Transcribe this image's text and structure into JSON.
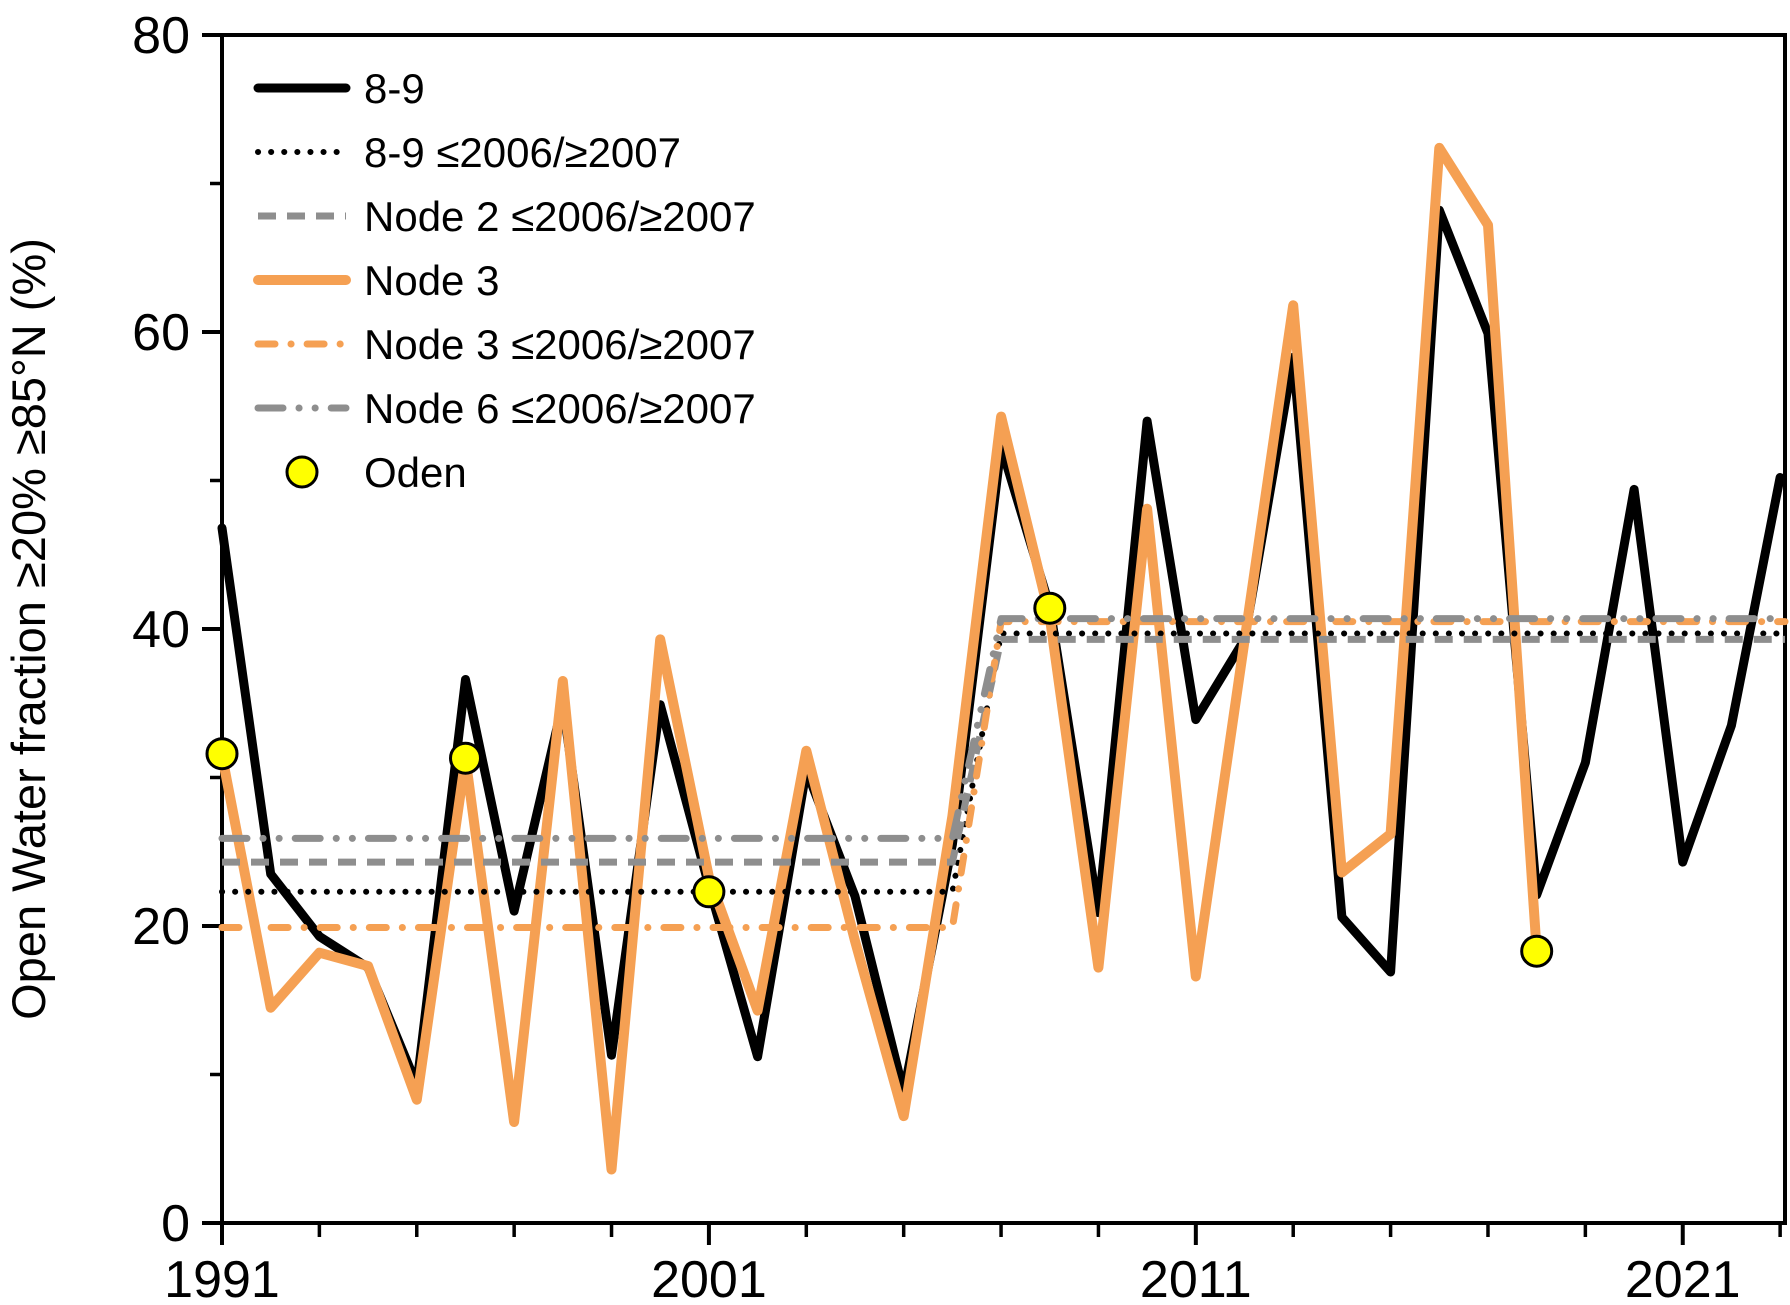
{
  "chart_data": {
    "type": "line",
    "title": "",
    "xlabel": "",
    "ylabel": "Open Water fraction ≥20%  ≥85°N  (%)",
    "xlim": [
      1991,
      2023.1
    ],
    "ylim": [
      0,
      80
    ],
    "x_ticks_labeled": [
      1991,
      2001,
      2011,
      2021
    ],
    "x_tick_minor_step": 2,
    "y_ticks_labeled": [
      0,
      20,
      40,
      60,
      80
    ],
    "y_tick_minor_step": 10,
    "grid": false,
    "legend_position": "top-left-inside",
    "colors": {
      "black": "#000000",
      "orange": "#F5A053",
      "gray": "#8E8E8E",
      "yellow": "#FFFF00"
    },
    "series": [
      {
        "name": "8-9",
        "type": "line",
        "color": "black",
        "width": 9,
        "start_year": 1991,
        "values": [
          46.8,
          23.5,
          19.3,
          17.2,
          9.3,
          36.6,
          21.0,
          35.0,
          11.3,
          34.9,
          22.7,
          11.2,
          30.5,
          22.0,
          8.8,
          25.5,
          52.3,
          41.5,
          20.9,
          54.0,
          33.9,
          39.3,
          58.3,
          20.6,
          16.9,
          68.2,
          59.9,
          22.1,
          31.0,
          49.4,
          24.3,
          33.5,
          50.2
        ]
      },
      {
        "name": "Node 3",
        "type": "line",
        "color": "orange",
        "width": 10,
        "start_year": 1991,
        "values": [
          31.5,
          14.5,
          18.2,
          17.3,
          8.3,
          31.3,
          6.8,
          36.5,
          3.6,
          39.3,
          23.3,
          14.3,
          31.8,
          19.0,
          7.2,
          27.4,
          54.3,
          40.8,
          17.2,
          48.1,
          16.6,
          39.2,
          61.8,
          23.6,
          26.2,
          72.4,
          67.2,
          18.3
        ]
      },
      {
        "name": "8-9 ≤2006/≥2007",
        "type": "step",
        "color": "black",
        "width": 6,
        "dash": "dotted",
        "pre_2006": 22.3,
        "post_2007": 39.7
      },
      {
        "name": "Node 2 ≤2006/≥2007",
        "type": "step",
        "color": "gray",
        "width": 7,
        "dash": "dashed",
        "pre_2006": 24.3,
        "post_2007": 39.3
      },
      {
        "name": "Node 3 ≤2006/≥2007",
        "type": "step",
        "color": "orange",
        "width": 7,
        "dash": "dashdot",
        "pre_2006": 19.9,
        "post_2007": 40.5
      },
      {
        "name": "Node 6 ≤2006/≥2007",
        "type": "step",
        "color": "gray",
        "width": 7,
        "dash": "longdashdotdot",
        "pre_2006": 25.9,
        "post_2007": 40.7
      },
      {
        "name": "Oden",
        "type": "scatter",
        "color": "yellow",
        "marker": "circle",
        "radius": 15,
        "points": [
          [
            1991,
            31.6
          ],
          [
            1996,
            31.3
          ],
          [
            2001,
            22.3
          ],
          [
            2008,
            41.4
          ],
          [
            2018,
            18.3
          ]
        ]
      }
    ]
  },
  "legend": {
    "order": [
      0,
      2,
      3,
      1,
      4,
      5,
      6
    ]
  }
}
